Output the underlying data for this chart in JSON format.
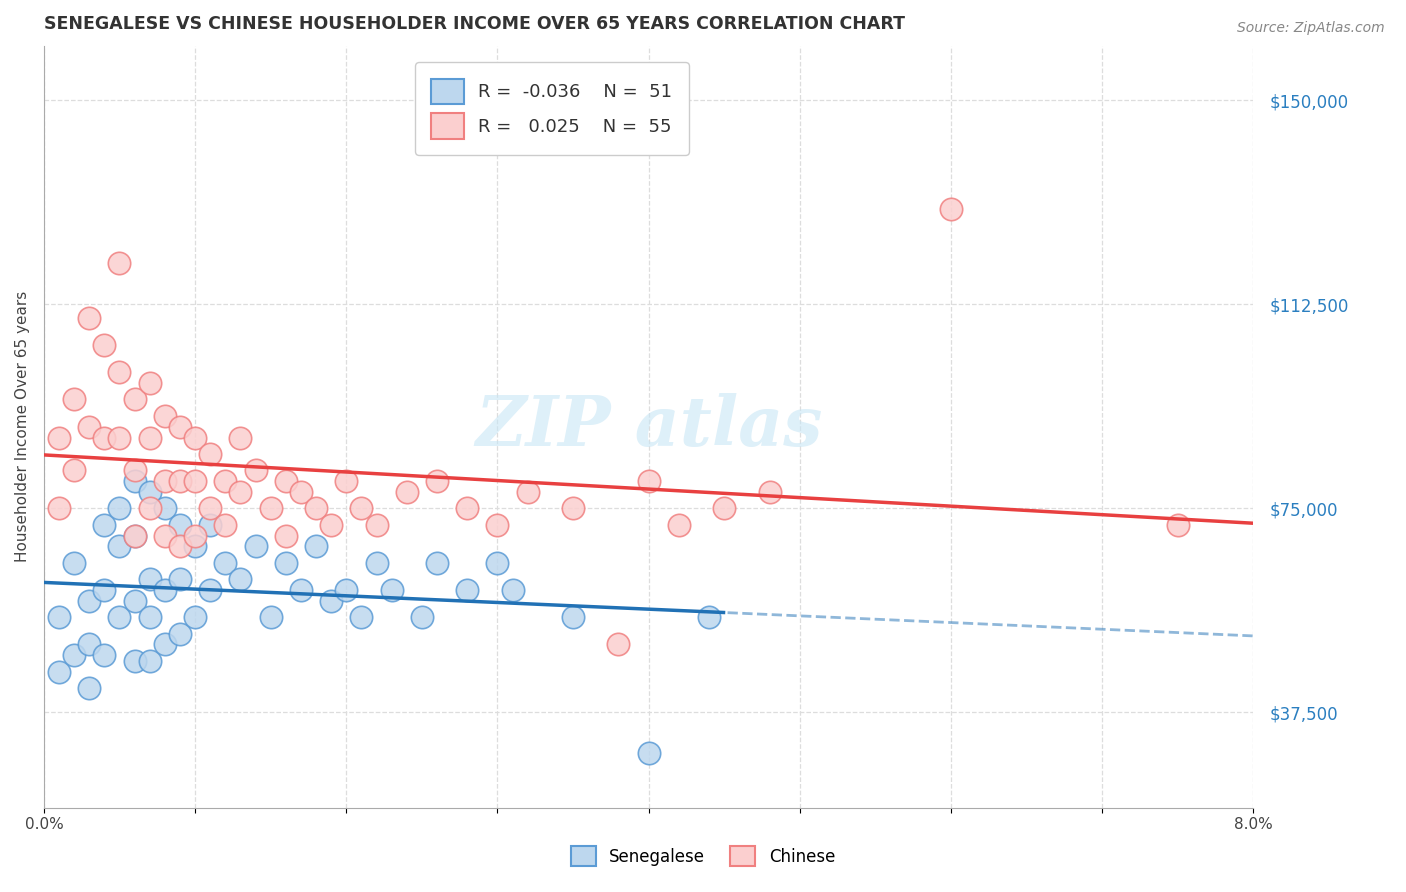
{
  "title": "SENEGALESE VS CHINESE HOUSEHOLDER INCOME OVER 65 YEARS CORRELATION CHART",
  "source": "Source: ZipAtlas.com",
  "ylabel": "Householder Income Over 65 years",
  "xlim": [
    0.0,
    0.08
  ],
  "ylim": [
    20000,
    160000
  ],
  "senegalese_R": -0.036,
  "senegalese_N": 51,
  "chinese_R": 0.025,
  "chinese_N": 55,
  "senegalese_color": "#5B9BD5",
  "chinese_color": "#F08080",
  "senegalese_fill": "#BDD7EE",
  "chinese_fill": "#FBCFCF",
  "sen_line_color": "#2171B5",
  "chi_line_color": "#E84040",
  "watermark_color": "#C8E6F5",
  "sen_x": [
    0.001,
    0.001,
    0.002,
    0.002,
    0.003,
    0.003,
    0.003,
    0.004,
    0.004,
    0.004,
    0.005,
    0.005,
    0.005,
    0.006,
    0.006,
    0.006,
    0.006,
    0.007,
    0.007,
    0.007,
    0.007,
    0.008,
    0.008,
    0.008,
    0.009,
    0.009,
    0.009,
    0.01,
    0.01,
    0.011,
    0.011,
    0.012,
    0.013,
    0.014,
    0.015,
    0.016,
    0.017,
    0.018,
    0.019,
    0.02,
    0.021,
    0.022,
    0.023,
    0.025,
    0.026,
    0.028,
    0.03,
    0.031,
    0.035,
    0.04,
    0.044
  ],
  "sen_y": [
    55000,
    45000,
    65000,
    48000,
    50000,
    58000,
    42000,
    72000,
    60000,
    48000,
    75000,
    68000,
    55000,
    80000,
    70000,
    58000,
    47000,
    78000,
    62000,
    55000,
    47000,
    75000,
    60000,
    50000,
    72000,
    62000,
    52000,
    68000,
    55000,
    72000,
    60000,
    65000,
    62000,
    68000,
    55000,
    65000,
    60000,
    68000,
    58000,
    60000,
    55000,
    65000,
    60000,
    55000,
    65000,
    60000,
    65000,
    60000,
    55000,
    30000,
    55000
  ],
  "chi_x": [
    0.001,
    0.001,
    0.002,
    0.002,
    0.003,
    0.003,
    0.004,
    0.004,
    0.005,
    0.005,
    0.005,
    0.006,
    0.006,
    0.006,
    0.007,
    0.007,
    0.007,
    0.008,
    0.008,
    0.008,
    0.009,
    0.009,
    0.009,
    0.01,
    0.01,
    0.01,
    0.011,
    0.011,
    0.012,
    0.012,
    0.013,
    0.013,
    0.014,
    0.015,
    0.016,
    0.016,
    0.017,
    0.018,
    0.019,
    0.02,
    0.021,
    0.022,
    0.024,
    0.026,
    0.028,
    0.03,
    0.032,
    0.035,
    0.038,
    0.04,
    0.042,
    0.045,
    0.048,
    0.06,
    0.075
  ],
  "chi_y": [
    88000,
    75000,
    95000,
    82000,
    110000,
    90000,
    105000,
    88000,
    100000,
    88000,
    120000,
    95000,
    82000,
    70000,
    98000,
    88000,
    75000,
    92000,
    80000,
    70000,
    90000,
    80000,
    68000,
    88000,
    80000,
    70000,
    85000,
    75000,
    80000,
    72000,
    88000,
    78000,
    82000,
    75000,
    80000,
    70000,
    78000,
    75000,
    72000,
    80000,
    75000,
    72000,
    78000,
    80000,
    75000,
    72000,
    78000,
    75000,
    50000,
    80000,
    72000,
    75000,
    78000,
    130000,
    72000
  ]
}
